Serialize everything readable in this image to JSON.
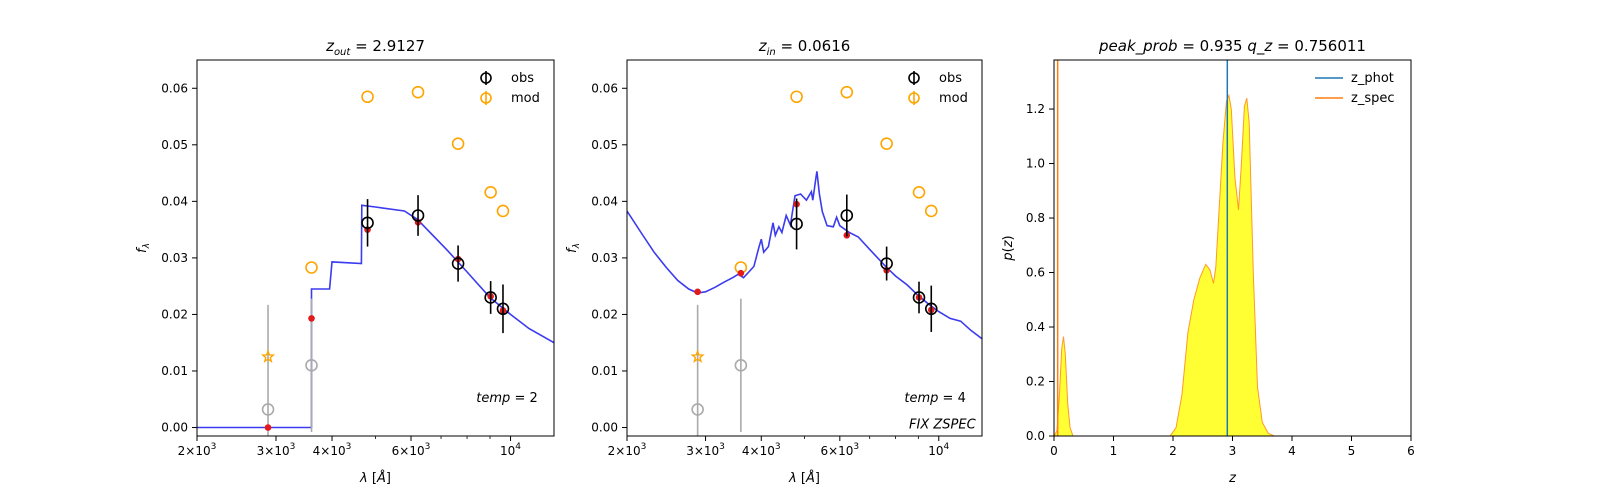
{
  "figure": {
    "background": "#ffffff"
  },
  "colors": {
    "sed_line": "#3b3bf0",
    "obs": "#000000",
    "mod": "#ffa500",
    "model_flux": "#e31a1c",
    "nondetect": "#aaaaaa",
    "z_phot": "#1f77b4",
    "z_spec": "#ff7f0e",
    "pz_fill": "#ffff33"
  },
  "chart_data": [
    {
      "id": "sed_out",
      "type": "scatter",
      "title_var": "z",
      "title_sub": "out",
      "title_value": "= 2.9127",
      "xlabel": "λ [Å]",
      "ylabel": "f",
      "ylabel_sub": "λ",
      "xscale": "log",
      "xlim": [
        2000,
        12500
      ],
      "ylim": [
        -0.0015,
        0.065
      ],
      "xticks": [
        {
          "value": 2000,
          "mant": "2",
          "exp": "3"
        },
        {
          "value": 3000,
          "mant": "3",
          "exp": "3"
        },
        {
          "value": 4000,
          "mant": "4",
          "exp": "3"
        },
        {
          "value": 6000,
          "mant": "6",
          "exp": "3"
        },
        {
          "value": 10000,
          "base": "10",
          "exp": "4"
        }
      ],
      "xminor": [
        5000,
        7000,
        8000,
        9000
      ],
      "yticks": [
        "0.00",
        "0.01",
        "0.02",
        "0.03",
        "0.04",
        "0.05",
        "0.06"
      ],
      "legend": [
        {
          "label": "obs",
          "marker": "obs"
        },
        {
          "label": "mod",
          "marker": "mod"
        }
      ],
      "annotations": [
        {
          "text_var": "temp",
          "text_value": "= 2",
          "x": 11500,
          "y": 0.0045
        }
      ],
      "sed": [
        [
          2000,
          0
        ],
        [
          2500,
          0
        ],
        [
          3100,
          0
        ],
        [
          3599,
          0
        ],
        [
          3600,
          0.0245
        ],
        [
          3800,
          0.0245
        ],
        [
          3801,
          0.0245
        ],
        [
          3950,
          0.0245
        ],
        [
          4000,
          0.0293
        ],
        [
          4650,
          0.029
        ],
        [
          4660,
          0.0393
        ],
        [
          5000,
          0.039
        ],
        [
          5800,
          0.0383
        ],
        [
          6200,
          0.0368
        ],
        [
          7200,
          0.0315
        ],
        [
          8000,
          0.0275
        ],
        [
          9000,
          0.023
        ],
        [
          10000,
          0.02
        ],
        [
          11000,
          0.0175
        ],
        [
          12500,
          0.015
        ]
      ],
      "obs": [
        {
          "x": 4800,
          "y": 0.0362,
          "err": 0.0042
        },
        {
          "x": 6220,
          "y": 0.0375,
          "err": 0.0036
        },
        {
          "x": 7640,
          "y": 0.029,
          "err": 0.0032
        },
        {
          "x": 9030,
          "y": 0.023,
          "err": 0.0029
        },
        {
          "x": 9620,
          "y": 0.021,
          "err": 0.0043
        }
      ],
      "nondetect": [
        {
          "x": 2880,
          "y": 0.0032,
          "err": 0.0185
        },
        {
          "x": 3600,
          "y": 0.011,
          "err": 0.0118
        }
      ],
      "mod": [
        {
          "x": 3600,
          "y": 0.0283
        },
        {
          "x": 4800,
          "y": 0.0585
        },
        {
          "x": 6220,
          "y": 0.0593
        },
        {
          "x": 7640,
          "y": 0.0502
        },
        {
          "x": 9030,
          "y": 0.0416
        },
        {
          "x": 9620,
          "y": 0.0383
        }
      ],
      "mod_star": {
        "x": 2880,
        "y": 0.0125
      },
      "model_flux": [
        {
          "x": 2880,
          "y": 0.0
        },
        {
          "x": 3600,
          "y": 0.0193
        },
        {
          "x": 4800,
          "y": 0.035
        },
        {
          "x": 6220,
          "y": 0.0363
        },
        {
          "x": 7640,
          "y": 0.0298
        },
        {
          "x": 9030,
          "y": 0.0232
        },
        {
          "x": 9620,
          "y": 0.0207
        }
      ]
    },
    {
      "id": "sed_in",
      "type": "scatter",
      "title_var": "z",
      "title_sub": "in",
      "title_value": "= 0.0616",
      "xlabel": "λ [Å]",
      "ylabel": "f",
      "ylabel_sub": "λ",
      "xscale": "log",
      "xlim": [
        2000,
        12500
      ],
      "ylim": [
        -0.0015,
        0.065
      ],
      "xticks": [
        {
          "value": 2000,
          "mant": "2",
          "exp": "3"
        },
        {
          "value": 3000,
          "mant": "3",
          "exp": "3"
        },
        {
          "value": 4000,
          "mant": "4",
          "exp": "3"
        },
        {
          "value": 6000,
          "mant": "6",
          "exp": "3"
        },
        {
          "value": 10000,
          "base": "10",
          "exp": "4"
        }
      ],
      "xminor": [
        5000,
        7000,
        8000,
        9000
      ],
      "yticks": [
        "0.00",
        "0.01",
        "0.02",
        "0.03",
        "0.04",
        "0.05",
        "0.06"
      ],
      "legend": [
        {
          "label": "obs",
          "marker": "obs"
        },
        {
          "label": "mod",
          "marker": "mod"
        }
      ],
      "annotations": [
        {
          "text_var": "temp",
          "text_value": "= 4",
          "x": 11500,
          "y": 0.0045
        },
        {
          "text_italic": "FIX ZSPEC",
          "x": 12100,
          "y": -0.0002
        }
      ],
      "sed": [
        [
          2000,
          0.0383
        ],
        [
          2150,
          0.0345
        ],
        [
          2300,
          0.031
        ],
        [
          2450,
          0.0283
        ],
        [
          2600,
          0.026
        ],
        [
          2750,
          0.0245
        ],
        [
          2880,
          0.0238
        ],
        [
          3000,
          0.024
        ],
        [
          3150,
          0.0248
        ],
        [
          3300,
          0.0257
        ],
        [
          3450,
          0.0265
        ],
        [
          3550,
          0.0271
        ],
        [
          3650,
          0.0265
        ],
        [
          3750,
          0.0275
        ],
        [
          3850,
          0.0285
        ],
        [
          3950,
          0.0318
        ],
        [
          4000,
          0.0333
        ],
        [
          4050,
          0.031
        ],
        [
          4150,
          0.032
        ],
        [
          4250,
          0.0362
        ],
        [
          4300,
          0.034
        ],
        [
          4380,
          0.0355
        ],
        [
          4450,
          0.0345
        ],
        [
          4550,
          0.0375
        ],
        [
          4650,
          0.0358
        ],
        [
          4760,
          0.041
        ],
        [
          4900,
          0.0413
        ],
        [
          5050,
          0.0402
        ],
        [
          5180,
          0.0417
        ],
        [
          5220,
          0.0402
        ],
        [
          5300,
          0.044
        ],
        [
          5330,
          0.0453
        ],
        [
          5400,
          0.0413
        ],
        [
          5480,
          0.0382
        ],
        [
          5620,
          0.0357
        ],
        [
          5800,
          0.0355
        ],
        [
          5900,
          0.0372
        ],
        [
          6000,
          0.0357
        ],
        [
          6300,
          0.0345
        ],
        [
          6600,
          0.0337
        ],
        [
          7000,
          0.0315
        ],
        [
          7600,
          0.0285
        ],
        [
          8000,
          0.0268
        ],
        [
          8500,
          0.0252
        ],
        [
          9000,
          0.0233
        ],
        [
          9500,
          0.0218
        ],
        [
          10000,
          0.0205
        ],
        [
          10600,
          0.0193
        ],
        [
          11200,
          0.0188
        ],
        [
          11800,
          0.0172
        ],
        [
          12500,
          0.0157
        ]
      ],
      "obs": [
        {
          "x": 4800,
          "y": 0.036,
          "err": 0.0045
        },
        {
          "x": 6220,
          "y": 0.0375,
          "err": 0.0037
        },
        {
          "x": 7640,
          "y": 0.029,
          "err": 0.003
        },
        {
          "x": 9030,
          "y": 0.023,
          "err": 0.0028
        },
        {
          "x": 9620,
          "y": 0.021,
          "err": 0.0041
        }
      ],
      "nondetect": [
        {
          "x": 2880,
          "y": 0.0032,
          "err": 0.0185
        },
        {
          "x": 3600,
          "y": 0.011,
          "err": 0.0118
        }
      ],
      "mod": [
        {
          "x": 3600,
          "y": 0.0283
        },
        {
          "x": 4800,
          "y": 0.0585
        },
        {
          "x": 6220,
          "y": 0.0593
        },
        {
          "x": 7640,
          "y": 0.0502
        },
        {
          "x": 9030,
          "y": 0.0416
        },
        {
          "x": 9620,
          "y": 0.0383
        }
      ],
      "mod_star": {
        "x": 2880,
        "y": 0.0125
      },
      "model_flux": [
        {
          "x": 2880,
          "y": 0.024
        },
        {
          "x": 3600,
          "y": 0.0273
        },
        {
          "x": 4800,
          "y": 0.0395
        },
        {
          "x": 6220,
          "y": 0.034
        },
        {
          "x": 7640,
          "y": 0.0278
        },
        {
          "x": 9030,
          "y": 0.023
        },
        {
          "x": 9620,
          "y": 0.0208
        }
      ]
    },
    {
      "id": "pz",
      "type": "area",
      "title_parts": [
        {
          "var": "peak_prob",
          "value": "= 0.935"
        },
        {
          "var": "q_z",
          "value": "= 0.756011"
        }
      ],
      "xlabel": "z",
      "ylabel": "p(z)",
      "xlim": [
        0,
        6
      ],
      "ylim": [
        0,
        1.38
      ],
      "xticks": [
        "0",
        "1",
        "2",
        "3",
        "4",
        "5",
        "6"
      ],
      "yticks": [
        "0.0",
        "0.2",
        "0.4",
        "0.6",
        "0.8",
        "1.0",
        "1.2"
      ],
      "legend": [
        {
          "label": "z_phot",
          "color_key": "z_phot"
        },
        {
          "label": "z_spec",
          "color_key": "z_spec"
        }
      ],
      "z_phot": 2.9127,
      "z_spec": 0.0616,
      "curve": [
        [
          0,
          0
        ],
        [
          0.05,
          0.02
        ],
        [
          0.09,
          0.15
        ],
        [
          0.13,
          0.32
        ],
        [
          0.16,
          0.365
        ],
        [
          0.19,
          0.3
        ],
        [
          0.23,
          0.12
        ],
        [
          0.27,
          0.03
        ],
        [
          0.32,
          0.0
        ],
        [
          1.95,
          0.0
        ],
        [
          2.05,
          0.03
        ],
        [
          2.15,
          0.15
        ],
        [
          2.25,
          0.38
        ],
        [
          2.35,
          0.5
        ],
        [
          2.45,
          0.58
        ],
        [
          2.55,
          0.63
        ],
        [
          2.62,
          0.61
        ],
        [
          2.68,
          0.56
        ],
        [
          2.72,
          0.62
        ],
        [
          2.78,
          0.85
        ],
        [
          2.84,
          1.08
        ],
        [
          2.9,
          1.23
        ],
        [
          2.94,
          1.25
        ],
        [
          2.98,
          1.2
        ],
        [
          3.04,
          0.95
        ],
        [
          3.1,
          0.83
        ],
        [
          3.15,
          1.0
        ],
        [
          3.2,
          1.21
        ],
        [
          3.24,
          1.24
        ],
        [
          3.28,
          1.15
        ],
        [
          3.35,
          0.6
        ],
        [
          3.42,
          0.18
        ],
        [
          3.5,
          0.05
        ],
        [
          3.6,
          0.01
        ],
        [
          3.7,
          0.0
        ],
        [
          5.0,
          0.0
        ]
      ]
    }
  ]
}
